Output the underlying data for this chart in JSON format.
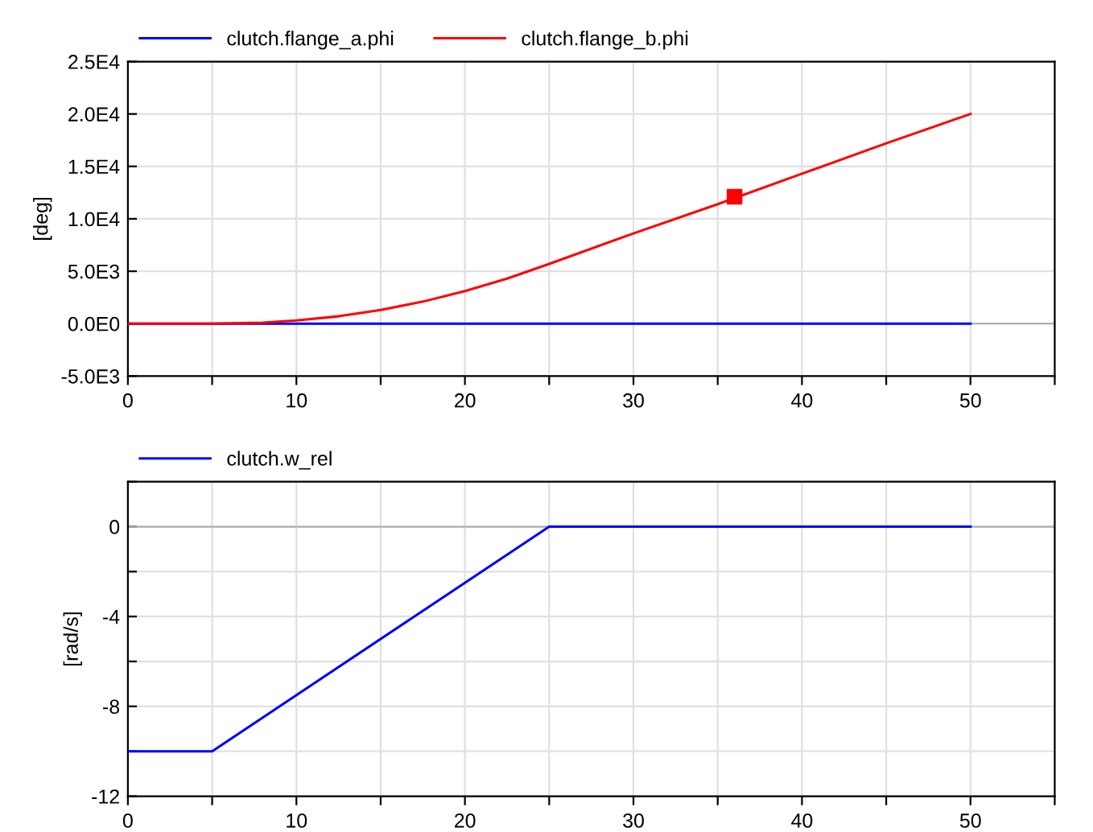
{
  "chart_data": [
    {
      "type": "line",
      "ylabel": "[deg]",
      "xlim": [
        0,
        55
      ],
      "ylim": [
        -5000,
        25000
      ],
      "xticks": [
        0,
        {
          "value": 5,
          "label": null
        },
        10,
        {
          "value": 15,
          "label": null
        },
        20,
        {
          "value": 25,
          "label": null
        },
        30,
        {
          "value": 35,
          "label": null
        },
        40,
        {
          "value": 45,
          "label": null
        },
        50,
        {
          "value": 55,
          "label": null
        }
      ],
      "yticks": [
        {
          "value": -5000,
          "label": "-5.0E3"
        },
        {
          "value": 0,
          "label": "0.0E0"
        },
        {
          "value": 5000,
          "label": "5.0E3"
        },
        {
          "value": 10000,
          "label": "1.0E4"
        },
        {
          "value": 15000,
          "label": "1.5E4"
        },
        {
          "value": 20000,
          "label": "2.0E4"
        },
        {
          "value": 25000,
          "label": "2.5E4"
        }
      ],
      "grid": true,
      "legend": "top left",
      "series": [
        {
          "name": "clutch.flange_a.phi",
          "color": "#0000ff",
          "x": [
            0,
            50
          ],
          "values": [
            0,
            0
          ]
        },
        {
          "name": "clutch.flange_b.phi",
          "color": "#ff0000",
          "x": [
            0,
            5,
            8,
            10,
            12.5,
            15,
            17.5,
            20,
            22.5,
            25,
            30,
            35,
            40,
            45,
            50
          ],
          "values": [
            0,
            0,
            100,
            300,
            700,
            1300,
            2100,
            3100,
            4300,
            5700,
            8600,
            11400,
            14300,
            17200,
            20000
          ]
        },
        {
          "type": "scatter",
          "marker": "square",
          "color": "#ff0000",
          "x": [
            36
          ],
          "values": [
            12100
          ]
        }
      ]
    },
    {
      "type": "line",
      "ylabel": "[rad/s]",
      "xlim": [
        0,
        55
      ],
      "ylim": [
        -12,
        2
      ],
      "xticks": [
        0,
        {
          "value": 5,
          "label": null
        },
        10,
        {
          "value": 15,
          "label": null
        },
        20,
        {
          "value": 25,
          "label": null
        },
        30,
        {
          "value": 35,
          "label": null
        },
        40,
        {
          "value": 45,
          "label": null
        },
        50,
        {
          "value": 55,
          "label": null
        }
      ],
      "yticks": [
        -12,
        {
          "value": -10,
          "label": null
        },
        -8,
        {
          "value": -6,
          "label": null
        },
        -4,
        {
          "value": -2,
          "label": null
        },
        0,
        {
          "value": 2,
          "label": null
        }
      ],
      "grid": true,
      "legend": "top left",
      "series": [
        {
          "name": "clutch.w_rel",
          "color": "#0000ff",
          "x": [
            0,
            5,
            25,
            50
          ],
          "values": [
            -10,
            -10,
            0,
            0
          ]
        }
      ]
    }
  ]
}
